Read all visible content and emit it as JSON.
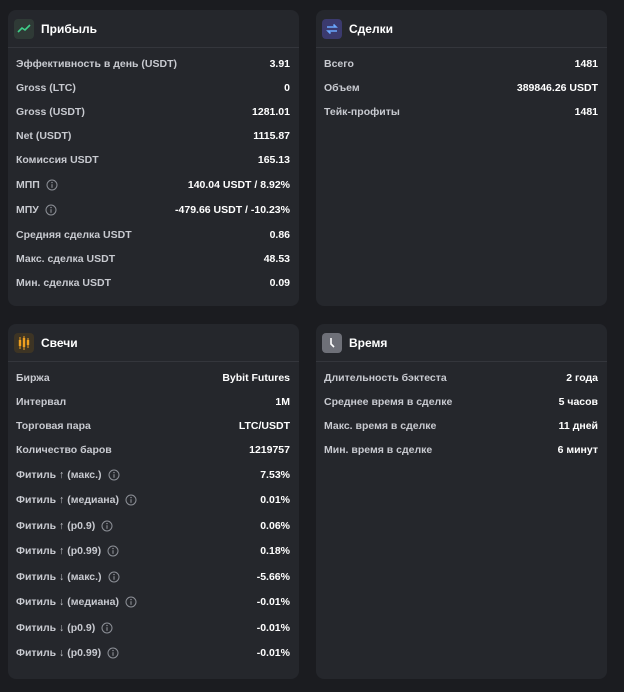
{
  "panels": [
    {
      "title": "Прибыль",
      "rows": [
        {
          "label": "Эффективность в день (USDT)",
          "value": "3.91"
        },
        {
          "label": "Gross (LTC)",
          "value": "0"
        },
        {
          "label": "Gross (USDT)",
          "value": "1281.01"
        },
        {
          "label": "Net (USDT)",
          "value": "1115.87"
        },
        {
          "label": "Комиссия USDT",
          "value": "165.13"
        },
        {
          "label": "МПП",
          "value": "140.04 USDT / 8.92%"
        },
        {
          "label": "МПУ",
          "value": "-479.66 USDT / -10.23%"
        },
        {
          "label": "Средняя сделка USDT",
          "value": "0.86"
        },
        {
          "label": "Макс. сделка USDT",
          "value": "48.53"
        },
        {
          "label": "Мин. сделка USDT",
          "value": "0.09"
        }
      ]
    },
    {
      "title": "Сделки",
      "rows": [
        {
          "label": "Всего",
          "value": "1481"
        },
        {
          "label": "Объем",
          "value": "389846.26 USDT"
        },
        {
          "label": "Тейк-профиты",
          "value": "1481"
        }
      ]
    },
    {
      "title": "Свечи",
      "rows": [
        {
          "label": "Биржа",
          "value": "Bybit Futures"
        },
        {
          "label": "Интервал",
          "value": "1M"
        },
        {
          "label": "Торговая пара",
          "value": "LTC/USDT"
        },
        {
          "label": "Количество баров",
          "value": "1219757"
        },
        {
          "label": "Фитиль ↑ (макс.)",
          "value": "7.53%"
        },
        {
          "label": "Фитиль ↑ (медиана)",
          "value": "0.01%"
        },
        {
          "label": "Фитиль ↑ (p0.9)",
          "value": "0.06%"
        },
        {
          "label": "Фитиль ↑ (p0.99)",
          "value": "0.18%"
        },
        {
          "label": "Фитиль ↓ (макс.)",
          "value": "-5.66%"
        },
        {
          "label": "Фитиль ↓ (медиана)",
          "value": "-0.01%"
        },
        {
          "label": "Фитиль ↓ (p0.9)",
          "value": "-0.01%"
        },
        {
          "label": "Фитиль ↓ (p0.99)",
          "value": "-0.01%"
        }
      ]
    },
    {
      "title": "Время",
      "rows": [
        {
          "label": "Длительность бэктеста",
          "value": "2 года"
        },
        {
          "label": "Среднее время в сделке",
          "value": "5 часов"
        },
        {
          "label": "Макс. время в сделке",
          "value": "11 дней"
        },
        {
          "label": "Мин. время в сделке",
          "value": "6 минут"
        }
      ]
    }
  ]
}
